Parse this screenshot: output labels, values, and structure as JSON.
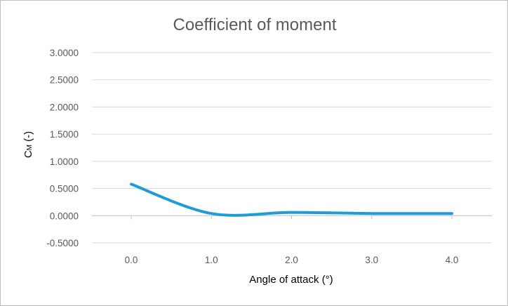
{
  "chart_data": {
    "type": "line",
    "title": "Coefficient of moment",
    "xlabel": "Angle of attack (°)",
    "ylabel": {
      "main": "C",
      "subscript": "M",
      "suffix": " (-)"
    },
    "x_ticks": [
      "0.0",
      "1.0",
      "2.0",
      "3.0",
      "4.0"
    ],
    "y_ticks": [
      "-0.5000",
      "0.0000",
      "0.5000",
      "1.0000",
      "1.5000",
      "2.0000",
      "2.5000",
      "3.0000"
    ],
    "xlim": [
      0,
      4
    ],
    "ylim": [
      -0.5,
      3.0
    ],
    "grid": true,
    "legend": "none",
    "series": [
      {
        "color": "#1f9bd7",
        "x": [
          0.0,
          1.0,
          2.0,
          3.0,
          4.0
        ],
        "y": [
          0.58,
          0.04,
          0.06,
          0.04,
          0.04
        ]
      }
    ]
  },
  "colors": {
    "gridline": "#d9d9d9",
    "axis": "#bfbfbf",
    "frame": "#bfbfbf"
  }
}
